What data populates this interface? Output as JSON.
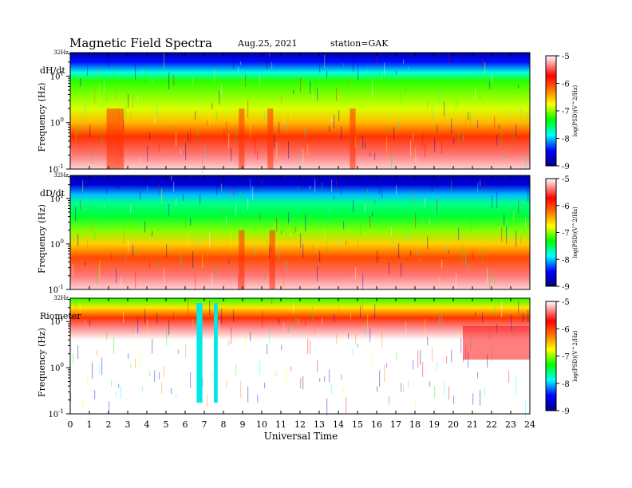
{
  "header": {
    "title": "Magnetic  Field  Spectra",
    "date": "Aug.25, 2021",
    "station": "station=GAK"
  },
  "x_axis": {
    "label": "Universal Time",
    "ticks": [
      "0",
      "1",
      "2",
      "3",
      "4",
      "5",
      "6",
      "7",
      "8",
      "9",
      "10",
      "11",
      "12",
      "13",
      "14",
      "15",
      "16",
      "17",
      "18",
      "19",
      "20",
      "21",
      "22",
      "23",
      "24"
    ]
  },
  "panels": [
    {
      "label": "dH/dt",
      "ylabel": "Frequency  (Hz)",
      "top_label": "32Hz",
      "yticks": [
        {
          "base": "10",
          "exp": "1",
          "v": 1
        },
        {
          "base": "10",
          "exp": "0",
          "v": 0
        },
        {
          "base": "10",
          "exp": "-1",
          "v": -1
        }
      ],
      "colorbar_label": "log(PSD)(V^2/Hz)",
      "colorbar_ticks": [
        "-5",
        "-6",
        "-7",
        "-8",
        "-9"
      ]
    },
    {
      "label": "dD/dt",
      "ylabel": "Frequency  (Hz)",
      "top_label": "32Hz",
      "yticks": [
        {
          "base": "10",
          "exp": "1",
          "v": 1
        },
        {
          "base": "10",
          "exp": "0",
          "v": 0
        },
        {
          "base": "10",
          "exp": "-1",
          "v": -1
        }
      ],
      "colorbar_label": "log(PSD)(V^2/Hz)",
      "colorbar_ticks": [
        "-5",
        "-6",
        "-7",
        "-8",
        "-9"
      ]
    },
    {
      "label": "Riometer",
      "ylabel": "Frequency  (Hz)",
      "top_label": "32Hz",
      "yticks": [
        {
          "base": "10",
          "exp": "1",
          "v": 1
        },
        {
          "base": "10",
          "exp": "0",
          "v": 0
        },
        {
          "base": "10",
          "exp": "-1",
          "v": -1
        }
      ],
      "colorbar_label": "log(PSD)(V^2/Hz)",
      "colorbar_ticks": [
        "-5",
        "-6",
        "-7",
        "-8",
        "-9"
      ]
    }
  ],
  "chart_data": {
    "type": "heatmap",
    "x_range": [
      0,
      24
    ],
    "x_unit": "hours UT",
    "y_scale": "log",
    "y_range_hz": [
      0.1,
      32
    ],
    "color_scale": "log(PSD)(V^2/Hz)",
    "color_range": [
      -9,
      -5
    ],
    "colormap": [
      "#ffffff",
      "#ff0000",
      "#ff8000",
      "#ffff00",
      "#00ff00",
      "#00ffff",
      "#0000ff",
      "#000080"
    ],
    "panels": [
      {
        "label": "dH/dt",
        "profile": [
          {
            "f": 32,
            "v": -8.8
          },
          {
            "f": 20,
            "v": -8.4
          },
          {
            "f": 12,
            "v": -7.8
          },
          {
            "f": 8,
            "v": -7.2
          },
          {
            "f": 4,
            "v": -7.0
          },
          {
            "f": 2,
            "v": -6.8
          },
          {
            "f": 1,
            "v": -6.4
          },
          {
            "f": 0.5,
            "v": -5.8
          },
          {
            "f": 0.2,
            "v": -5.3
          },
          {
            "f": 0.1,
            "v": -5.1
          }
        ],
        "active_intervals_ut": [
          [
            1.9,
            2.8
          ],
          [
            8.8,
            9.1
          ],
          [
            10.3,
            10.6
          ],
          [
            14.6,
            14.9
          ]
        ]
      },
      {
        "label": "dD/dt",
        "profile": [
          {
            "f": 32,
            "v": -8.8
          },
          {
            "f": 20,
            "v": -8.6
          },
          {
            "f": 12,
            "v": -8.0
          },
          {
            "f": 8,
            "v": -7.6
          },
          {
            "f": 4,
            "v": -7.4
          },
          {
            "f": 2,
            "v": -7.0
          },
          {
            "f": 1,
            "v": -6.5
          },
          {
            "f": 0.5,
            "v": -5.9
          },
          {
            "f": 0.2,
            "v": -5.3
          },
          {
            "f": 0.1,
            "v": -5.1
          }
        ],
        "active_intervals_ut": [
          [
            8.8,
            9.1
          ],
          [
            10.4,
            10.7
          ]
        ]
      },
      {
        "label": "Riometer",
        "profile": [
          {
            "f": 32,
            "v": -7.2
          },
          {
            "f": 20,
            "v": -6.6
          },
          {
            "f": 12,
            "v": -5.8
          },
          {
            "f": 8,
            "v": -5.3
          },
          {
            "f": 4,
            "v": -5.0
          },
          {
            "f": 1,
            "v": -5.0
          },
          {
            "f": 0.1,
            "v": -5.0
          }
        ],
        "disturbed_intervals_ut": [
          [
            6.6,
            6.9
          ],
          [
            7.5,
            7.7
          ]
        ],
        "enhanced_interval_ut": [
          20.5,
          24
        ]
      }
    ]
  }
}
